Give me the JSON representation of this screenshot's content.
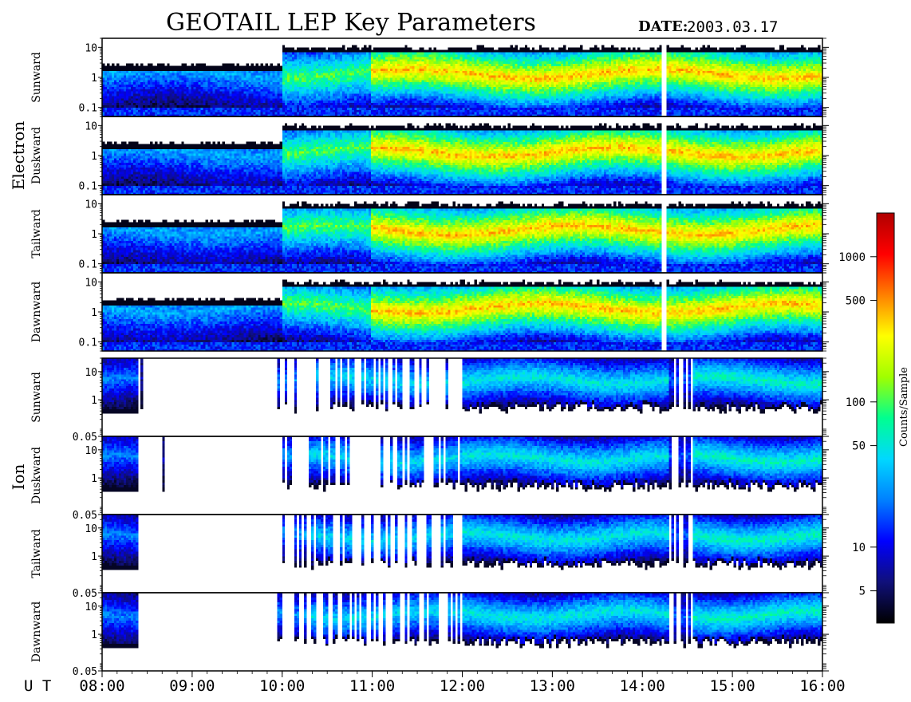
{
  "title": "GEOTAIL LEP Key Parameters",
  "date_label": "DATE:",
  "date_value": "2003.03.17",
  "ut_label": "U T",
  "colors": {
    "background": "#ffffff",
    "frame": "#000000"
  },
  "chart_data": {
    "type": "heatmap",
    "x_axis": {
      "label": "U T",
      "ticks": [
        "08:00",
        "09:00",
        "10:00",
        "11:00",
        "12:00",
        "13:00",
        "14:00",
        "15:00",
        "16:00"
      ],
      "range": [
        "08:00",
        "16:00"
      ]
    },
    "groups": [
      {
        "name": "Electron",
        "panels": [
          {
            "label": "Sunward",
            "ylim": [
              0.05,
              20
            ],
            "y_scale": "log",
            "y_ticks": [
              "10",
              "1",
              "0.1"
            ],
            "data_gap_near": "14:13"
          },
          {
            "label": "Duskward",
            "ylim": [
              0.05,
              20
            ],
            "y_scale": "log",
            "y_ticks": [
              "10",
              "1",
              "0.1"
            ],
            "data_gap_near": "14:13"
          },
          {
            "label": "Tailward",
            "ylim": [
              0.05,
              20
            ],
            "y_scale": "log",
            "y_ticks": [
              "10",
              "1",
              "0.1"
            ],
            "data_gap_near": "14:13"
          },
          {
            "label": "Dawnward",
            "ylim": [
              0.05,
              20
            ],
            "y_scale": "log",
            "y_ticks": [
              "10",
              "1",
              "0.1"
            ],
            "data_gap_near": "14:13"
          }
        ]
      },
      {
        "name": "Ion",
        "panels": [
          {
            "label": "Sunward",
            "ylim": [
              0.05,
              30
            ],
            "y_scale": "log",
            "y_ticks": [
              "10",
              "1",
              "0.05"
            ]
          },
          {
            "label": "Duskward",
            "ylim": [
              0.05,
              30
            ],
            "y_scale": "log",
            "y_ticks": [
              "10",
              "1",
              "0.05"
            ]
          },
          {
            "label": "Tailward",
            "ylim": [
              0.05,
              30
            ],
            "y_scale": "log",
            "y_ticks": [
              "10",
              "1",
              "0.05"
            ]
          },
          {
            "label": "Dawnward",
            "ylim": [
              0.05,
              30
            ],
            "y_scale": "log",
            "y_ticks": [
              "10",
              "1",
              "0.05"
            ]
          }
        ]
      }
    ],
    "colorbar": {
      "label": "Counts/Sample",
      "scale": "log",
      "range": [
        3,
        2000
      ],
      "ticks": [
        {
          "label": "5",
          "value": 5
        },
        {
          "label": "10",
          "value": 10
        },
        {
          "label": "50",
          "value": 50
        },
        {
          "label": "100",
          "value": 100
        },
        {
          "label": "500",
          "value": 500
        },
        {
          "label": "1000",
          "value": 1000
        }
      ],
      "colors": [
        "#000000",
        "#10107a",
        "#0000ff",
        "#0080ff",
        "#00d8ff",
        "#00ff90",
        "#a0ff00",
        "#ffff00",
        "#ff8000",
        "#ff0000",
        "#b00000"
      ]
    }
  }
}
